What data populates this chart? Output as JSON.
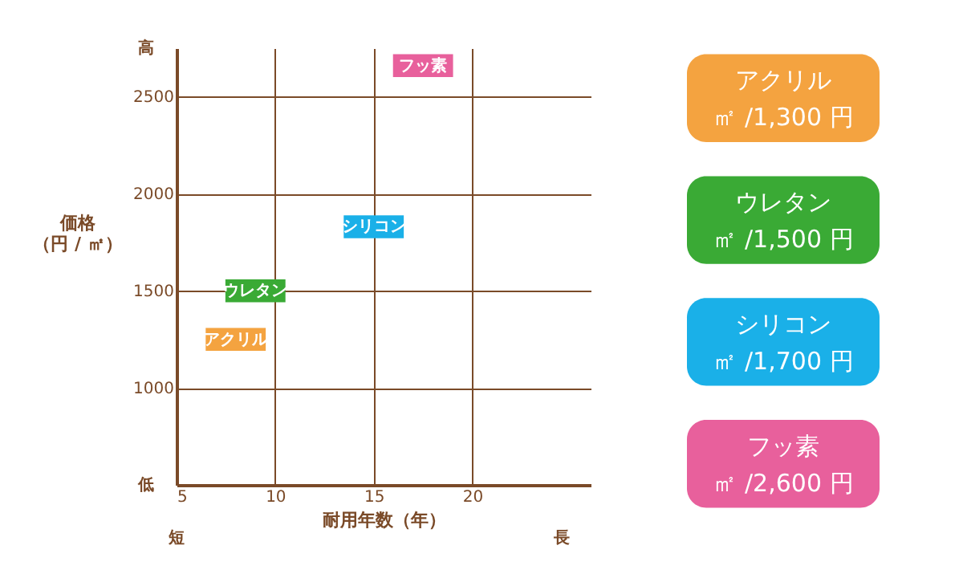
{
  "chart_data": [
    {
      "type": "scatter",
      "xlabel": "耐用年数（年）",
      "ylabel": "価格（円 / ㎡）",
      "xlim": [
        5,
        26
      ],
      "ylim": [
        500,
        2750
      ],
      "xticks": [
        5,
        10,
        15,
        20
      ],
      "yticks": [
        1000,
        1500,
        2000,
        2500
      ],
      "grid": true,
      "legend": false,
      "marker": "square",
      "series": [
        {
          "name": "アクリル",
          "color": "#f4a340",
          "x": [
            8
          ],
          "values": [
            1250
          ]
        },
        {
          "name": "ウレタン",
          "color": "#3aaa35",
          "x": [
            9
          ],
          "values": [
            1500
          ]
        },
        {
          "name": "シリコン",
          "color": "#1ab0e8",
          "x": [
            15
          ],
          "values": [
            1830
          ]
        },
        {
          "name": "フッ素",
          "color": "#e8609c",
          "x": [
            17.5
          ],
          "values": [
            2660
          ]
        }
      ],
      "annotations": [
        "高",
        "低",
        "短",
        "長"
      ]
    },
    {
      "type": "other",
      "categories": [
        "アクリル",
        "ウレタン",
        "シリコン",
        "フッ素"
      ],
      "annotations": [
        "㎡ /1,300 円",
        "㎡ /1,500 円",
        "㎡ /1,700 円",
        "㎡ /2,600 円"
      ],
      "colors": [
        "#f4a340",
        "#3aaa35",
        "#1ab0e8",
        "#e8609c"
      ]
    }
  ]
}
